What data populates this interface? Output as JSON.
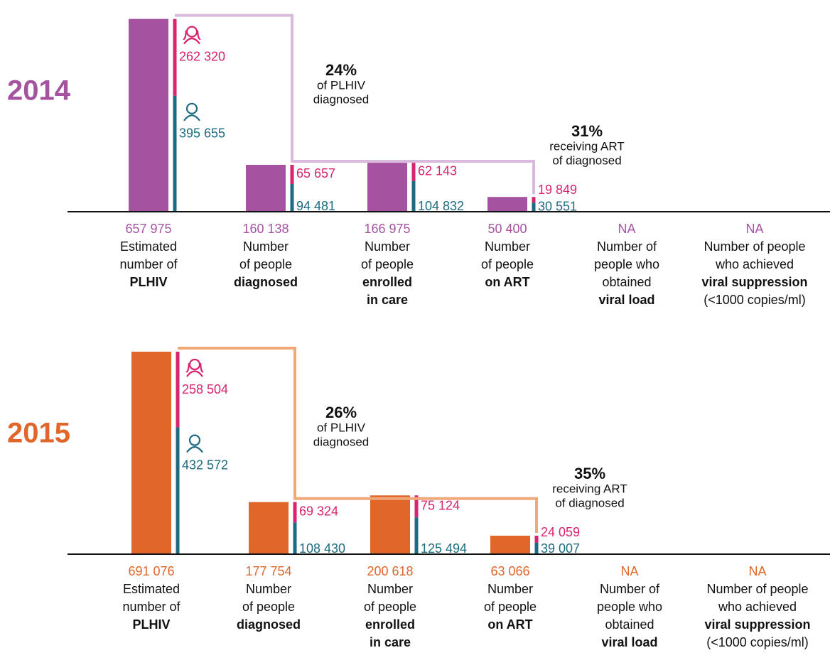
{
  "chart_data": [
    {
      "type": "cascade",
      "title": "2014",
      "color": "#a553a0",
      "bracket_color": "#d9b9dc",
      "categories": [
        [
          {
            "text": "Estimated",
            "bold": false
          },
          {
            "text": "number of",
            "bold": false
          },
          {
            "text": "PLHIV",
            "bold": true
          }
        ],
        [
          {
            "text": "Number",
            "bold": false
          },
          {
            "text": "of people",
            "bold": false
          },
          {
            "text": "diagnosed",
            "bold": true
          }
        ],
        [
          {
            "text": "Number",
            "bold": false
          },
          {
            "text": "of people",
            "bold": false
          },
          {
            "text": "enrolled",
            "bold": true
          },
          {
            "text": "in care",
            "bold": true
          }
        ],
        [
          {
            "text": "Number",
            "bold": false
          },
          {
            "text": "of people",
            "bold": false
          },
          {
            "text": "on ART",
            "bold": true
          }
        ],
        [
          {
            "text": "Number of",
            "bold": false
          },
          {
            "text": "people who",
            "bold": false
          },
          {
            "text": "obtained",
            "bold": false
          },
          {
            "text": "viral load",
            "bold": true
          }
        ],
        [
          {
            "text": "Number of people",
            "bold": false
          },
          {
            "text": "who achieved",
            "bold": false
          },
          {
            "text": "viral suppression",
            "bold": true
          },
          {
            "text": "(<1000 copies/ml)",
            "bold": false
          }
        ]
      ],
      "values": [
        657975,
        160138,
        166975,
        50400,
        null,
        null
      ],
      "value_labels": [
        "657 975",
        "160 138",
        "166 975",
        "50 400",
        "NA",
        "NA"
      ],
      "series": [
        {
          "color": "#d6246e",
          "values": [
            262320,
            65657,
            62143,
            19849,
            null,
            null
          ],
          "value_labels": [
            "262 320",
            "65 657",
            "62 143",
            "19 849",
            null,
            null
          ]
        },
        {
          "color": "#1c6b80",
          "values": [
            395655,
            94481,
            104832,
            30551,
            null,
            null
          ],
          "value_labels": [
            "395 655",
            "94 481",
            "104 832",
            "30 551",
            null,
            null
          ]
        }
      ],
      "annotations": [
        {
          "label": "24%",
          "lines": [
            "of PLHIV",
            "diagnosed"
          ]
        },
        {
          "label": "31%",
          "lines": [
            "receiving ART",
            "of diagnosed"
          ]
        }
      ]
    },
    {
      "type": "cascade",
      "title": "2015",
      "color": "#e0662a",
      "bracket_color": "#f0a878",
      "categories": [
        [
          {
            "text": "Estimated",
            "bold": false
          },
          {
            "text": "number of",
            "bold": false
          },
          {
            "text": "PLHIV",
            "bold": true
          }
        ],
        [
          {
            "text": "Number",
            "bold": false
          },
          {
            "text": "of people",
            "bold": false
          },
          {
            "text": "diagnosed",
            "bold": true
          }
        ],
        [
          {
            "text": "Number",
            "bold": false
          },
          {
            "text": "of people",
            "bold": false
          },
          {
            "text": "enrolled",
            "bold": true
          },
          {
            "text": "in care",
            "bold": true
          }
        ],
        [
          {
            "text": "Number",
            "bold": false
          },
          {
            "text": "of people",
            "bold": false
          },
          {
            "text": "on ART",
            "bold": true
          }
        ],
        [
          {
            "text": "Number of",
            "bold": false
          },
          {
            "text": "people who",
            "bold": false
          },
          {
            "text": "obtained",
            "bold": false
          },
          {
            "text": "viral load",
            "bold": true
          }
        ],
        [
          {
            "text": "Number of people",
            "bold": false
          },
          {
            "text": "who achieved",
            "bold": false
          },
          {
            "text": "viral suppression",
            "bold": true
          },
          {
            "text": "(<1000 copies/ml)",
            "bold": false
          }
        ]
      ],
      "values": [
        691076,
        177754,
        200618,
        63066,
        null,
        null
      ],
      "value_labels": [
        "691 076",
        "177 754",
        "200 618",
        "63 066",
        "NA",
        "NA"
      ],
      "series": [
        {
          "color": "#d6246e",
          "values": [
            258504,
            69324,
            75124,
            24059,
            null,
            null
          ],
          "value_labels": [
            "258 504",
            "69 324",
            "75 124",
            "24 059",
            null,
            null
          ]
        },
        {
          "color": "#1c6b80",
          "values": [
            432572,
            108430,
            125494,
            39007,
            null,
            null
          ],
          "value_labels": [
            "432 572",
            "108 430",
            "125 494",
            "39 007",
            null,
            null
          ]
        }
      ],
      "annotations": [
        {
          "label": "26%",
          "lines": [
            "of PLHIV",
            "diagnosed"
          ]
        },
        {
          "label": "35%",
          "lines": [
            "receiving ART",
            "of diagnosed"
          ]
        }
      ]
    }
  ]
}
